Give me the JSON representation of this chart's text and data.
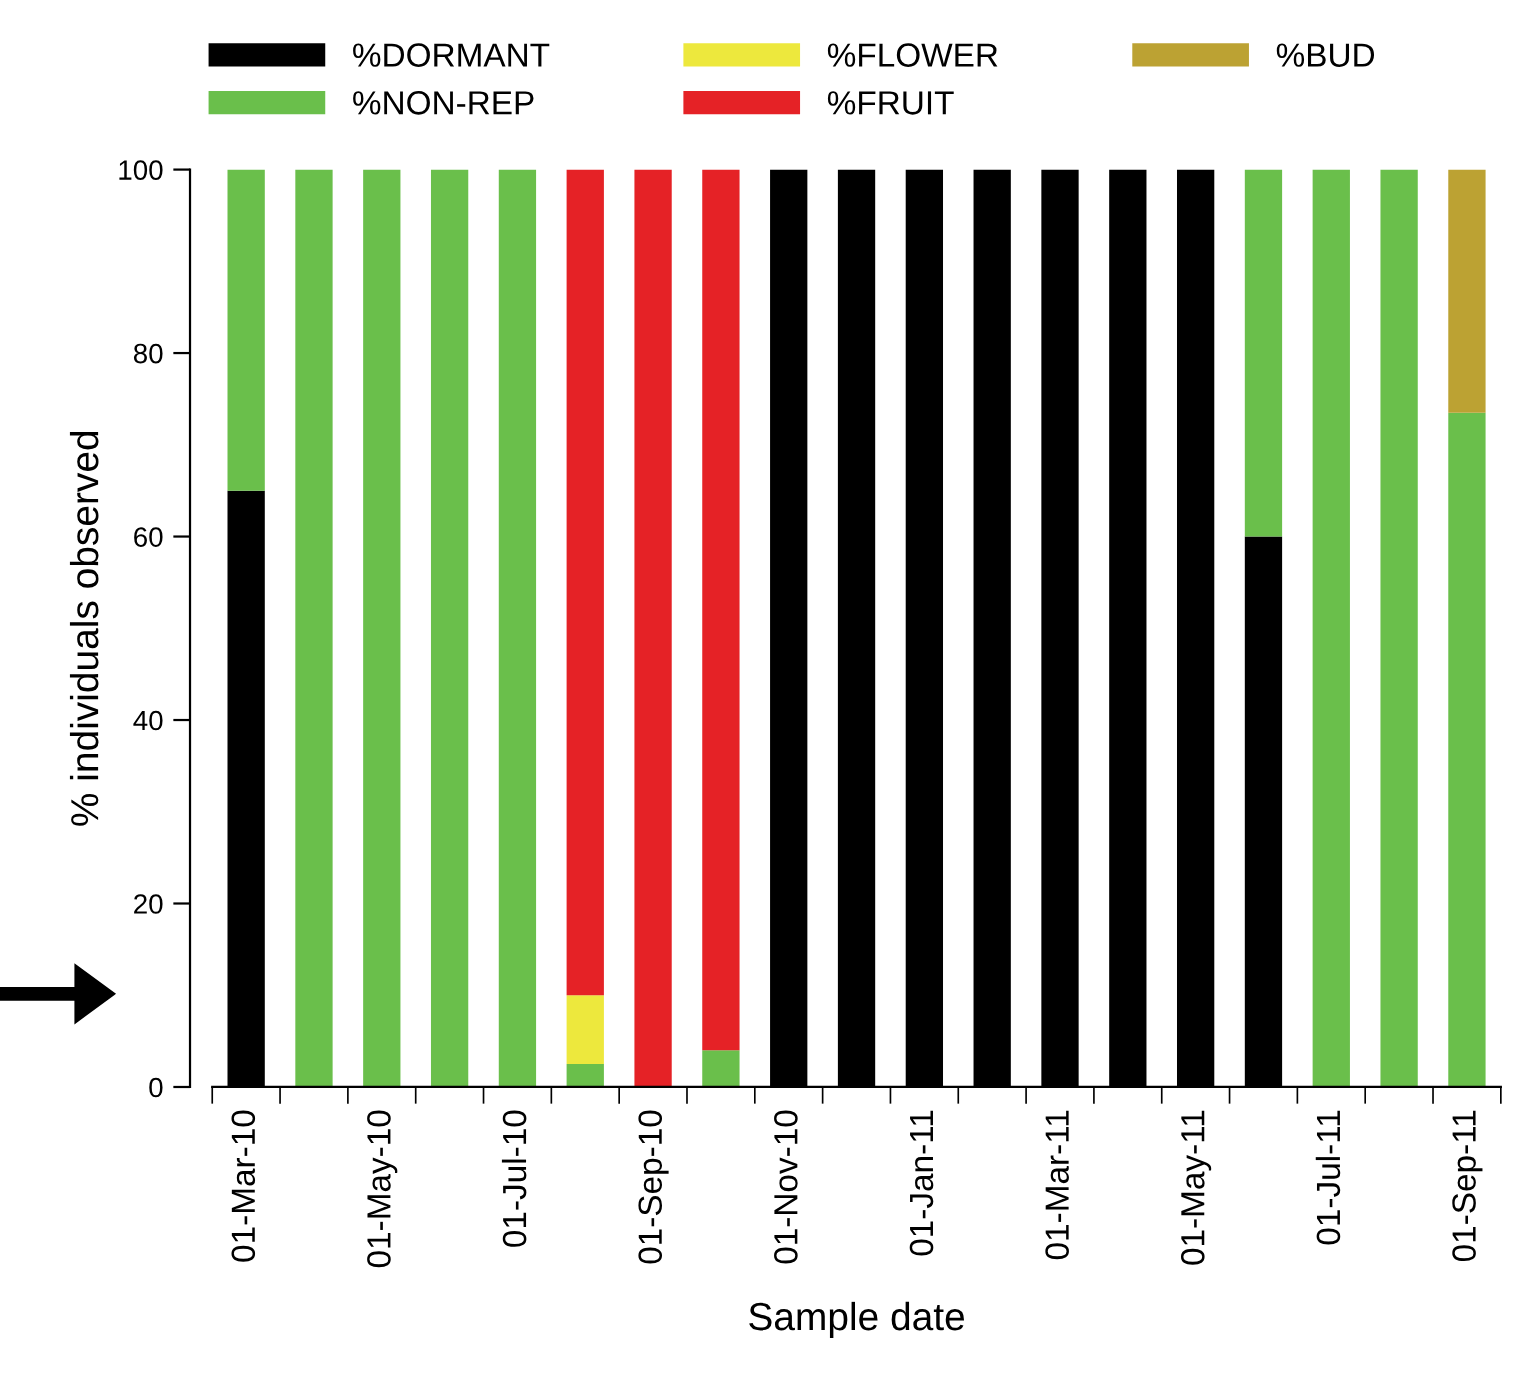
{
  "chart_data": {
    "type": "bar",
    "stacked": true,
    "xlabel": "Sample date",
    "ylabel": "% individuals observed",
    "categories": [
      "01-Mar-10",
      null,
      "01-May-10",
      null,
      "01-Jul-10",
      null,
      "01-Sep-10",
      null,
      "01-Nov-10",
      null,
      "01-Jan-11",
      null,
      "01-Mar-11",
      null,
      "01-May-11",
      null,
      "01-Jul-11",
      null,
      "01-Sep-11"
    ],
    "series": [
      {
        "name": "%DORMANT",
        "color": "#000000",
        "values": [
          65,
          0,
          0,
          0,
          0,
          0,
          0,
          0,
          100,
          100,
          100,
          100,
          100,
          100,
          100,
          60,
          0,
          0,
          0
        ]
      },
      {
        "name": "%NON-REP",
        "color": "#6abf4b",
        "values": [
          35,
          100,
          100,
          100,
          100,
          2.5,
          0,
          4,
          0,
          0,
          0,
          0,
          0,
          0,
          0,
          40,
          100,
          100,
          73.5
        ]
      },
      {
        "name": "%FLOWER",
        "color": "#ede83d",
        "values": [
          0,
          0,
          0,
          0,
          0,
          7.5,
          0,
          0,
          0,
          0,
          0,
          0,
          0,
          0,
          0,
          0,
          0,
          0,
          0
        ]
      },
      {
        "name": "%FRUIT",
        "color": "#e52226",
        "values": [
          0,
          0,
          0,
          0,
          0,
          90,
          100,
          96,
          0,
          0,
          0,
          0,
          0,
          0,
          0,
          0,
          0,
          0,
          0
        ]
      },
      {
        "name": "%BUD",
        "color": "#bca233",
        "values": [
          0,
          0,
          0,
          0,
          0,
          0,
          0,
          0,
          0,
          0,
          0,
          0,
          0,
          0,
          0,
          0,
          0,
          0,
          26.5
        ]
      }
    ],
    "ylim": [
      0,
      100
    ],
    "yticks": [
      0,
      20,
      40,
      60,
      80,
      100
    ],
    "grid": false,
    "legend": "top"
  }
}
